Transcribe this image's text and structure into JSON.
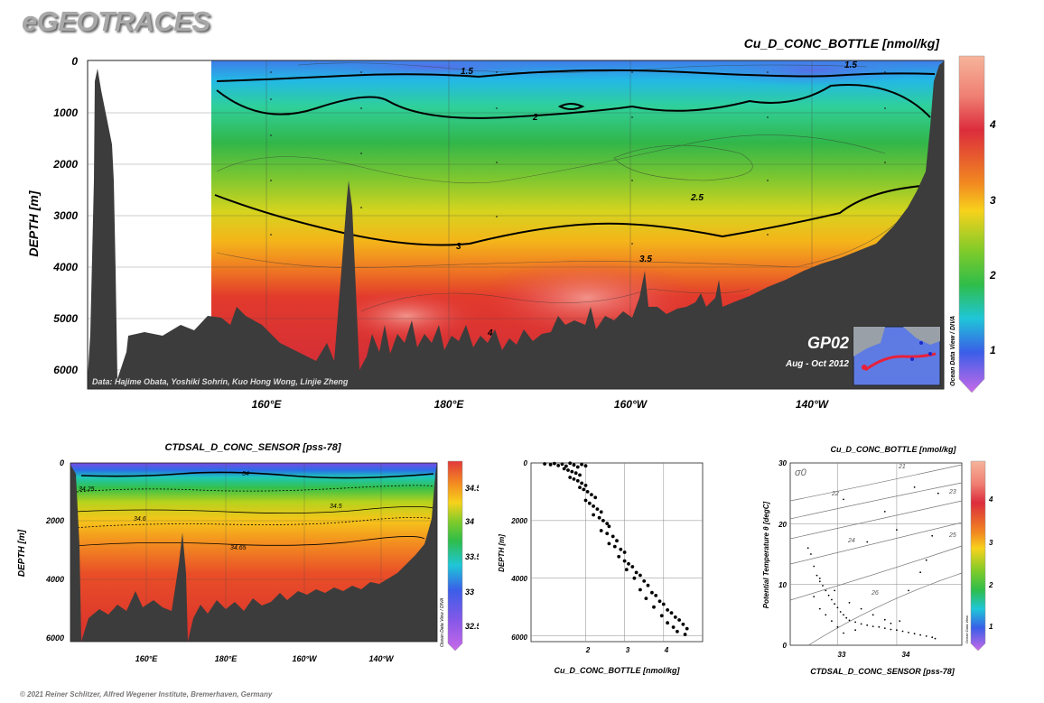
{
  "header": {
    "logo": "eGEOTRACES",
    "copyright": "© 2021 Reiner Schlitzer, Alfred Wegener Institute, Bremerhaven, Germany"
  },
  "colors": {
    "seafloor": "#3c3c3c",
    "contour": "#000000"
  },
  "chart_data": [
    {
      "id": "main-section",
      "type": "heatmap",
      "title": "Cu_D_CONC_BOTTLE [nmol/kg]",
      "ylabel": "DEPTH [m]",
      "y_ticks": [
        "0",
        "1000",
        "2000",
        "3000",
        "4000",
        "5000",
        "6000"
      ],
      "x_ticks": [
        "160°E",
        "180°E",
        "160°W",
        "140°W"
      ],
      "ylim": [
        6400,
        0
      ],
      "colorbar_ticks": [
        "4",
        "3",
        "2",
        "1"
      ],
      "colorbar_range": [
        0.6,
        4.8
      ],
      "contour_labels": [
        "1.5",
        "1.5",
        "2",
        "2.5",
        "3",
        "3.5",
        "4"
      ],
      "credits": "Data: Hajime Obata, Yoshiki Sohrin, Kuo Hong Wong, Linjie Zheng",
      "side_label": "Ocean Data View / DIVA",
      "section_name": "GP02",
      "cruise_dates": "Aug - Oct 2012"
    },
    {
      "id": "salinity-section",
      "type": "heatmap",
      "title": "CTDSAL_D_CONC_SENSOR [pss-78]",
      "ylabel": "DEPTH [m]",
      "y_ticks": [
        "0",
        "2000",
        "4000",
        "6000"
      ],
      "x_ticks": [
        "160°E",
        "180°E",
        "160°W",
        "140°W"
      ],
      "colorbar_ticks": [
        "34.5",
        "34",
        "33.5",
        "33",
        "32.5"
      ],
      "colorbar_range": [
        32.3,
        34.8
      ],
      "contour_labels": [
        "34",
        "34.25",
        "34.5",
        "34.6",
        "34.65"
      ],
      "side_label": "Ocean Data View / DIVA"
    },
    {
      "id": "profile-scatter",
      "type": "scatter",
      "xlabel": "Cu_D_CONC_BOTTLE [nmol/kg]",
      "ylabel": "DEPTH [m]",
      "x_ticks": [
        "2",
        "3",
        "4"
      ],
      "y_ticks": [
        "0",
        "2000",
        "4000",
        "6000"
      ],
      "xlim": [
        0.6,
        5.0
      ],
      "ylim": [
        6200,
        0
      ],
      "points": [
        [
          0.95,
          30
        ],
        [
          1.1,
          60
        ],
        [
          1.2,
          20
        ],
        [
          1.3,
          90
        ],
        [
          1.4,
          40
        ],
        [
          1.5,
          110
        ],
        [
          1.6,
          10
        ],
        [
          1.7,
          70
        ],
        [
          1.8,
          140
        ],
        [
          1.9,
          50
        ],
        [
          2.0,
          100
        ],
        [
          1.45,
          200
        ],
        [
          1.55,
          250
        ],
        [
          1.65,
          300
        ],
        [
          1.75,
          350
        ],
        [
          1.85,
          420
        ],
        [
          1.6,
          500
        ],
        [
          1.7,
          560
        ],
        [
          1.8,
          620
        ],
        [
          1.9,
          700
        ],
        [
          2.0,
          780
        ],
        [
          1.85,
          850
        ],
        [
          1.95,
          920
        ],
        [
          2.05,
          1000
        ],
        [
          2.15,
          1100
        ],
        [
          2.25,
          1200
        ],
        [
          2.0,
          1300
        ],
        [
          2.1,
          1400
        ],
        [
          2.2,
          1500
        ],
        [
          2.3,
          1600
        ],
        [
          2.4,
          1700
        ],
        [
          2.2,
          1800
        ],
        [
          2.35,
          1900
        ],
        [
          2.45,
          2000
        ],
        [
          2.55,
          2100
        ],
        [
          2.6,
          2200
        ],
        [
          2.4,
          2350
        ],
        [
          2.55,
          2450
        ],
        [
          2.7,
          2550
        ],
        [
          2.8,
          2700
        ],
        [
          2.6,
          2800
        ],
        [
          2.75,
          2900
        ],
        [
          2.9,
          3000
        ],
        [
          3.0,
          3100
        ],
        [
          2.85,
          3250
        ],
        [
          3.0,
          3400
        ],
        [
          3.1,
          3500
        ],
        [
          3.2,
          3600
        ],
        [
          3.05,
          3700
        ],
        [
          3.3,
          3800
        ],
        [
          3.4,
          3900
        ],
        [
          3.25,
          4000
        ],
        [
          3.5,
          4100
        ],
        [
          3.6,
          4250
        ],
        [
          3.4,
          4400
        ],
        [
          3.7,
          4500
        ],
        [
          3.8,
          4600
        ],
        [
          3.55,
          4700
        ],
        [
          3.9,
          4800
        ],
        [
          4.0,
          4900
        ],
        [
          3.75,
          5000
        ],
        [
          4.1,
          5100
        ],
        [
          4.2,
          5200
        ],
        [
          3.95,
          5300
        ],
        [
          4.3,
          5350
        ],
        [
          4.4,
          5450
        ],
        [
          4.1,
          5550
        ],
        [
          4.5,
          5600
        ],
        [
          4.25,
          5700
        ],
        [
          4.6,
          5750
        ],
        [
          4.35,
          5850
        ],
        [
          4.55,
          5950
        ]
      ]
    },
    {
      "id": "ts-diagram",
      "type": "scatter",
      "title": "Cu_D_CONC_BOTTLE [nmol/kg]",
      "xlabel": "CTDSAL_D_CONC_SENSOR [pss-78]",
      "ylabel": "Potential Temperature θ [degC]",
      "x_ticks": [
        "33",
        "34"
      ],
      "y_ticks": [
        "0",
        "10",
        "20",
        "30"
      ],
      "xlim": [
        32.2,
        35.1
      ],
      "ylim": [
        0,
        30
      ],
      "sigma_label": "σ0",
      "isopycnal_labels": [
        "21",
        "22",
        "23",
        "24",
        "25",
        "26"
      ],
      "colorbar_ticks": [
        "4",
        "3",
        "2",
        "1"
      ],
      "colorbar_range": [
        0.6,
        4.8
      ],
      "side_label": "Ocean Data View",
      "points": [
        [
          32.5,
          16
        ],
        [
          32.55,
          15
        ],
        [
          32.6,
          13
        ],
        [
          32.65,
          11.5
        ],
        [
          32.7,
          10.5
        ],
        [
          32.75,
          9.8
        ],
        [
          32.8,
          9
        ],
        [
          32.85,
          8.2
        ],
        [
          32.9,
          7.5
        ],
        [
          32.95,
          6.8
        ],
        [
          33.0,
          6.2
        ],
        [
          33.05,
          5.5
        ],
        [
          33.1,
          5
        ],
        [
          33.15,
          4.5
        ],
        [
          33.2,
          4.1
        ],
        [
          33.3,
          3.8
        ],
        [
          33.4,
          3.5
        ],
        [
          33.5,
          3.3
        ],
        [
          33.6,
          3.1
        ],
        [
          33.7,
          3.0
        ],
        [
          33.8,
          2.8
        ],
        [
          33.9,
          2.6
        ],
        [
          34.0,
          2.5
        ],
        [
          34.1,
          2.3
        ],
        [
          34.2,
          2.1
        ],
        [
          34.3,
          1.9
        ],
        [
          34.4,
          1.7
        ],
        [
          34.5,
          1.5
        ],
        [
          34.6,
          1.3
        ],
        [
          34.65,
          1.1
        ],
        [
          32.7,
          6
        ],
        [
          32.8,
          5
        ],
        [
          32.9,
          4
        ],
        [
          33.0,
          3
        ],
        [
          33.1,
          2
        ],
        [
          32.95,
          9
        ],
        [
          33.2,
          7
        ],
        [
          33.4,
          6
        ],
        [
          33.6,
          5
        ],
        [
          33.8,
          4.2
        ],
        [
          34.2,
          9
        ],
        [
          34.4,
          12
        ],
        [
          34.5,
          14
        ],
        [
          34.0,
          19
        ],
        [
          33.8,
          22
        ],
        [
          33.5,
          17
        ],
        [
          34.6,
          18
        ],
        [
          34.7,
          25
        ],
        [
          34.3,
          26
        ],
        [
          33.1,
          24
        ],
        [
          32.6,
          8
        ],
        [
          32.7,
          11
        ],
        [
          33.3,
          2.5
        ],
        [
          33.9,
          3.6
        ],
        [
          34.05,
          4
        ]
      ]
    }
  ]
}
